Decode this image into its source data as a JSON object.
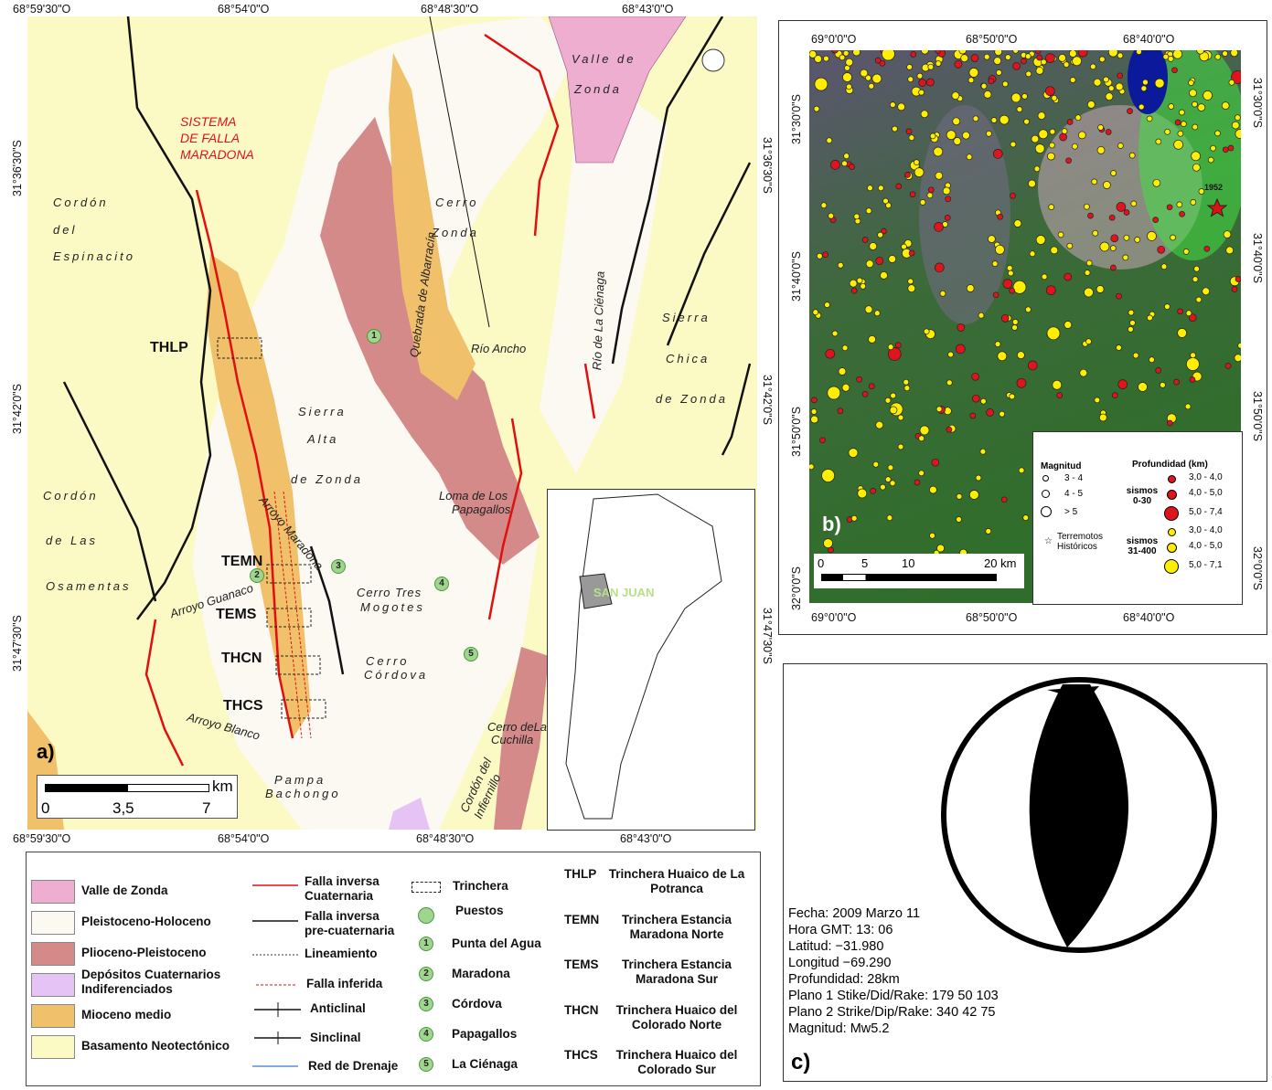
{
  "panel_a": {
    "label": "a)",
    "top_coords": [
      "68°59'30\"O",
      "68°54'0\"O",
      "68°48'30\"O",
      "68°43'0\"O"
    ],
    "bottom_coords": [
      "68°59'30\"O",
      "68°54'0\"O",
      "68°48'30\"O",
      "68°43'0\"O"
    ],
    "left_coords": [
      "31°36'30\"S",
      "31°42'0\"S",
      "31°47'30\"S"
    ],
    "right_coords": [
      "31°36'30\"S",
      "31°42'0\"S",
      "31°47'30\"S"
    ],
    "map_labels": [
      "SISTEMA",
      "DE FALLA",
      "MARADONA",
      "Cordón",
      "del",
      "Espinacito",
      "Cerro",
      "Zonda",
      "Valle de",
      "Zonda",
      "Quebrada de Albarracín",
      "Río Ancho",
      "Río de La Ciénaga",
      "Sierra",
      "Alta",
      "de Zonda",
      "Sierra",
      "Chica",
      "de Zonda",
      "Loma de Los",
      "Papagallos",
      "Arroyo Maradona",
      "Cordón",
      "de Las",
      "Osamentas",
      "Arroyo Guanaco",
      "Cerro Tres",
      "Mogotes",
      "Cerro",
      "Córdova",
      "Arroyo Blanco",
      "Cerro deLa",
      "Cuchilla",
      "Pampa",
      "Bachongo",
      "Cordón del",
      "Infiernillo"
    ],
    "trenches": [
      "THLP",
      "TEMN",
      "TEMS",
      "THCN",
      "THCS"
    ],
    "puestos_numbers": [
      "1",
      "2",
      "3",
      "4",
      "5"
    ],
    "inset_label": "SAN JUAN",
    "scale": {
      "unit": "km",
      "ticks": [
        "0",
        "3,5",
        "7"
      ]
    }
  },
  "legend": {
    "units": [
      {
        "label": "Valle de Zonda",
        "color": "#eeaed0"
      },
      {
        "label": "Pleistoceno-Holoceno",
        "color": "#fbf9f1"
      },
      {
        "label": "Plioceno-Pleistoceno",
        "color": "#d58a8a"
      },
      {
        "label": "Depósitos Cuaternarios Indiferenciados",
        "color": "#e6c3f5"
      },
      {
        "label": "Mioceno medio",
        "color": "#f0c06a"
      },
      {
        "label": "Basamento Neotectónico",
        "color": "#fbfac5"
      }
    ],
    "lines": [
      "Falla inversa Cuaternaria",
      "Falla inversa pre-cuaternaria",
      "Lineamiento",
      "Falla inferida",
      "Anticlinal",
      "Sinclinal",
      "Red de Drenaje"
    ],
    "trinchera": "Trinchera",
    "puestos": "Puestos",
    "puestos_list": [
      {
        "n": "1",
        "name": "Punta del Agua"
      },
      {
        "n": "2",
        "name": "Maradona"
      },
      {
        "n": "3",
        "name": "Córdova"
      },
      {
        "n": "4",
        "name": "Papagallos"
      },
      {
        "n": "5",
        "name": "La Ciénaga"
      }
    ],
    "abbrev": [
      {
        "code": "THLP",
        "name": "Trinchera Huaico de La Potranca"
      },
      {
        "code": "TEMN",
        "name": "Trinchera Estancia Maradona Norte"
      },
      {
        "code": "TEMS",
        "name": "Trinchera Estancia Maradona Sur"
      },
      {
        "code": "THCN",
        "name": "Trinchera Huaico del Colorado Norte"
      },
      {
        "code": "THCS",
        "name": "Trinchera Huaico del Colorado Sur"
      }
    ]
  },
  "panel_b": {
    "label": "b)",
    "top_coords": [
      "69°0'0\"O",
      "68°50'0\"O",
      "68°40'0\"O"
    ],
    "bottom_coords": [
      "69°0'0\"O",
      "68°50'0\"O",
      "68°40'0\"O"
    ],
    "left_coords": [
      "31°30'0\"S",
      "31°40'0\"S",
      "31°50'0\"S",
      "32°0'0\"S"
    ],
    "right_coords": [
      "31°30'0\"S",
      "31°40'0\"S",
      "31°50'0\"S",
      "32°0'0\"S"
    ],
    "historic_year": "1952",
    "scale": [
      "0",
      "5",
      "10",
      "20 km"
    ],
    "legend": {
      "magnitude_title": "Magnitud",
      "magnitudes": [
        "3 - 4",
        "4 - 5",
        "> 5"
      ],
      "historic": "Terremotos Históricos",
      "depth_title": "Profundidad (km)",
      "shallow": "sismos 0-30",
      "shallow_color": "#e0141c",
      "shallow_ranges": [
        "3,0 - 4,0",
        "4,0 - 5,0",
        "5,0 - 7,4"
      ],
      "deep": "sismos 31-400",
      "deep_color": "#ffee00",
      "deep_ranges": [
        "3,0 - 4,0",
        "4,0 - 5,0",
        "5,0 - 7,1"
      ]
    }
  },
  "panel_c": {
    "label": "c)",
    "lines": [
      "Fecha: 2009 Marzo 11",
      "Hora GMT: 13: 06",
      "Latitud: −31.980",
      "Longitud −69.290",
      "Profundidad: 28km",
      "Plano 1 Stike/Did/Rake: 179 50 103",
      "Plano 2 Strike/Dip/Rake: 340 42 75",
      "Magnitud: Mw5.2"
    ]
  }
}
